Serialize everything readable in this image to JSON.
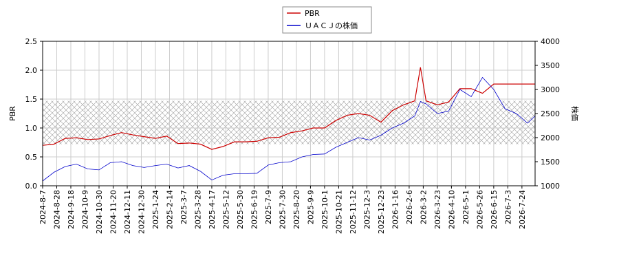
{
  "chart_data": {
    "type": "line",
    "ylabel": "PBR",
    "y2label": "株価",
    "x": [
      0,
      12,
      24,
      36,
      48,
      60,
      72,
      84,
      96,
      108,
      120,
      132,
      144,
      156,
      168,
      180,
      192,
      204,
      216,
      228,
      240,
      252,
      264,
      276,
      288,
      300,
      312,
      324,
      336,
      348,
      360,
      372,
      384,
      396,
      402,
      408,
      420,
      432,
      444,
      456,
      468,
      480,
      492,
      504,
      516,
      524
    ],
    "xlim": [
      0,
      524
    ],
    "xticks": [
      {
        "value": 0,
        "label": "2024-8-7"
      },
      {
        "value": 15,
        "label": "2024-8-28"
      },
      {
        "value": 30,
        "label": "2024-9-18"
      },
      {
        "value": 45,
        "label": "2024-10-9"
      },
      {
        "value": 60,
        "label": "2024-10-30"
      },
      {
        "value": 75,
        "label": "2024-11-20"
      },
      {
        "value": 90,
        "label": "2024-12-11"
      },
      {
        "value": 105,
        "label": "2024-12-30"
      },
      {
        "value": 120,
        "label": "2025-1-24"
      },
      {
        "value": 135,
        "label": "2025-2-14"
      },
      {
        "value": 150,
        "label": "2025-3-7"
      },
      {
        "value": 165,
        "label": "2025-3-28"
      },
      {
        "value": 180,
        "label": "2025-4-17"
      },
      {
        "value": 195,
        "label": "2025-5-12"
      },
      {
        "value": 210,
        "label": "2025-5-30"
      },
      {
        "value": 225,
        "label": "2025-6-19"
      },
      {
        "value": 240,
        "label": "2025-7-9"
      },
      {
        "value": 255,
        "label": "2025-7-30"
      },
      {
        "value": 270,
        "label": "2025-8-20"
      },
      {
        "value": 285,
        "label": "2025-9-9"
      },
      {
        "value": 300,
        "label": "2025-10-1"
      },
      {
        "value": 315,
        "label": "2025-10-21"
      },
      {
        "value": 330,
        "label": "2025-11-12"
      },
      {
        "value": 345,
        "label": "2025-12-3"
      },
      {
        "value": 360,
        "label": "2025-12-23"
      },
      {
        "value": 375,
        "label": "2026-1-16"
      },
      {
        "value": 390,
        "label": "2026-2-6"
      },
      {
        "value": 405,
        "label": "2026-3-2"
      },
      {
        "value": 420,
        "label": "2026-3-23"
      },
      {
        "value": 435,
        "label": "2026-4-10"
      },
      {
        "value": 450,
        "label": "2026-5-1"
      },
      {
        "value": 465,
        "label": "2026-5-26"
      },
      {
        "value": 480,
        "label": "2026-6-15"
      },
      {
        "value": 495,
        "label": "2026-7-3"
      },
      {
        "value": 510,
        "label": "2026-7-24"
      }
    ],
    "ylim": [
      0,
      2.5
    ],
    "yticks": [
      {
        "value": 0,
        "label": "0.0"
      },
      0.5,
      {
        "value": 1,
        "label": "1.0"
      },
      1.5,
      {
        "value": 2,
        "label": "2.0"
      },
      2.5
    ],
    "y2lim": [
      1000,
      4000
    ],
    "y2ticks": [
      1000,
      1500,
      2000,
      2500,
      3000,
      3500,
      4000
    ],
    "shaded_range": [
      0.72,
      1.47
    ],
    "grid": true,
    "legend": "top",
    "series": [
      {
        "name": "PBR",
        "color": "#cc0000",
        "values": [
          0.7,
          0.72,
          0.82,
          0.83,
          0.8,
          0.81,
          0.87,
          0.92,
          0.88,
          0.85,
          0.82,
          0.86,
          0.73,
          0.74,
          0.72,
          0.63,
          0.68,
          0.76,
          0.76,
          0.77,
          0.83,
          0.84,
          0.92,
          0.95,
          1.0,
          1.0,
          1.13,
          1.22,
          1.25,
          1.22,
          1.1,
          1.3,
          1.4,
          1.47,
          2.05,
          1.47,
          1.4,
          1.45,
          1.68,
          1.68,
          1.6,
          1.76,
          1.76,
          1.76,
          1.76,
          1.76
        ]
      },
      {
        "name": "ＵＡＣＪの株価",
        "color": "#0000cc",
        "axis": "y2",
        "values": [
          1100,
          1280,
          1400,
          1450,
          1350,
          1330,
          1480,
          1500,
          1420,
          1380,
          1420,
          1450,
          1370,
          1420,
          1300,
          1120,
          1220,
          1250,
          1250,
          1260,
          1430,
          1480,
          1500,
          1600,
          1650,
          1660,
          1800,
          1900,
          2000,
          1950,
          2050,
          2200,
          2300,
          2450,
          2750,
          2700,
          2500,
          2550,
          3000,
          2850,
          3250,
          3000,
          2600,
          2500,
          2300,
          2450
        ]
      }
    ]
  }
}
